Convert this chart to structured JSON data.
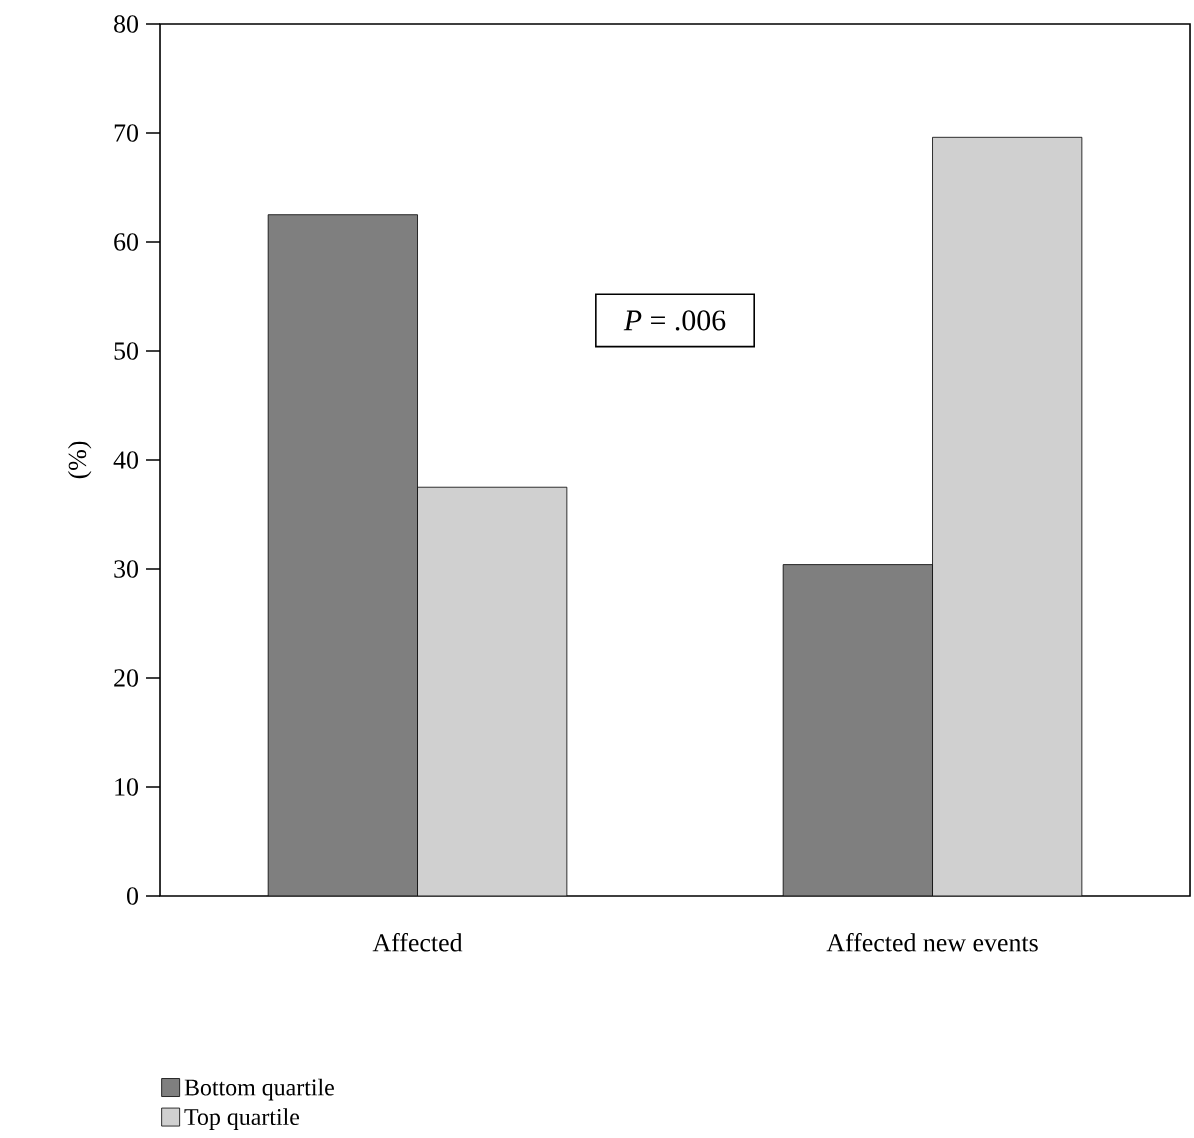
{
  "chart_data": {
    "type": "bar",
    "ylabel": "(%)",
    "categories": [
      "Affected",
      "Affected new events"
    ],
    "series": [
      {
        "name": "Bottom quartile",
        "color": "#7f7f7f",
        "values": [
          62.5,
          30.4
        ]
      },
      {
        "name": "Top quartile",
        "color": "#d0d0d0",
        "values": [
          37.5,
          69.6
        ]
      }
    ],
    "ylim": [
      0,
      80
    ],
    "yticks": [
      0,
      10,
      20,
      30,
      40,
      50,
      60,
      70,
      80
    ],
    "annotations": [
      "*P* = .006"
    ],
    "legend": "bottom left",
    "grid": false
  }
}
